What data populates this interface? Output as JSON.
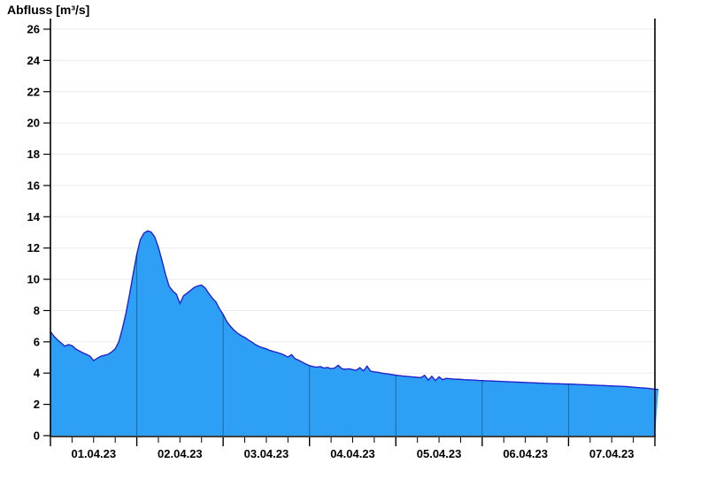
{
  "chart_data": {
    "type": "area",
    "title": "Abfluss [m³/s]",
    "ylabel": "Abfluss [m³/s]",
    "xlabel": "",
    "legend": "none",
    "grid": "horizontal-light",
    "ylim": [
      0,
      26
    ],
    "y_tick_step": 2,
    "y_tick_labels": [
      "0",
      "2",
      "4",
      "6",
      "8",
      "10",
      "12",
      "14",
      "16",
      "18",
      "20",
      "22",
      "24",
      "26"
    ],
    "x_tick_labels": [
      "01.04.23",
      "02.04.23",
      "03.04.23",
      "04.04.23",
      "05.04.23",
      "06.04.23",
      "07.04.23"
    ],
    "x_range_hours": [
      0,
      168
    ],
    "sample_interval_hours": 1,
    "minor_x_tick_hours": 6,
    "values": [
      6.65,
      6.35,
      6.12,
      5.92,
      5.72,
      5.82,
      5.76,
      5.55,
      5.42,
      5.3,
      5.2,
      5.08,
      4.8,
      4.95,
      5.08,
      5.14,
      5.2,
      5.35,
      5.55,
      6.0,
      6.85,
      7.85,
      9.05,
      10.35,
      11.6,
      12.55,
      12.95,
      13.1,
      13.02,
      12.7,
      12.05,
      11.2,
      10.3,
      9.55,
      9.25,
      9.05,
      8.45,
      8.95,
      9.12,
      9.3,
      9.48,
      9.58,
      9.62,
      9.45,
      9.1,
      8.8,
      8.55,
      8.1,
      7.75,
      7.3,
      7.0,
      6.75,
      6.55,
      6.4,
      6.28,
      6.12,
      5.98,
      5.82,
      5.7,
      5.62,
      5.55,
      5.45,
      5.38,
      5.32,
      5.25,
      5.15,
      5.02,
      5.18,
      4.92,
      4.82,
      4.7,
      4.58,
      4.48,
      4.42,
      4.38,
      4.42,
      4.32,
      4.36,
      4.28,
      4.33,
      4.5,
      4.28,
      4.25,
      4.28,
      4.22,
      4.18,
      4.35,
      4.14,
      4.45,
      4.12,
      4.08,
      4.05,
      4.0,
      3.97,
      3.94,
      3.9,
      3.87,
      3.84,
      3.81,
      3.79,
      3.77,
      3.75,
      3.73,
      3.71,
      3.86,
      3.55,
      3.8,
      3.52,
      3.76,
      3.58,
      3.66,
      3.64,
      3.62,
      3.61,
      3.6,
      3.58,
      3.57,
      3.56,
      3.55,
      3.53,
      3.52,
      3.51,
      3.5,
      3.49,
      3.48,
      3.47,
      3.46,
      3.45,
      3.44,
      3.43,
      3.42,
      3.41,
      3.4,
      3.39,
      3.38,
      3.37,
      3.36,
      3.35,
      3.34,
      3.33,
      3.32,
      3.32,
      3.31,
      3.3,
      3.3,
      3.29,
      3.28,
      3.27,
      3.26,
      3.25,
      3.24,
      3.23,
      3.22,
      3.21,
      3.2,
      3.19,
      3.18,
      3.17,
      3.16,
      3.15,
      3.14,
      3.12,
      3.1,
      3.08,
      3.06,
      3.05,
      3.03,
      3.0,
      2.97,
      2.95
    ],
    "colors": {
      "fill": "#2da0f5",
      "line": "#2222cc",
      "grid": "#ebebeb",
      "axis": "#000000",
      "day_divider": "rgba(0,0,0,0.35)",
      "background": "#ffffff"
    }
  }
}
